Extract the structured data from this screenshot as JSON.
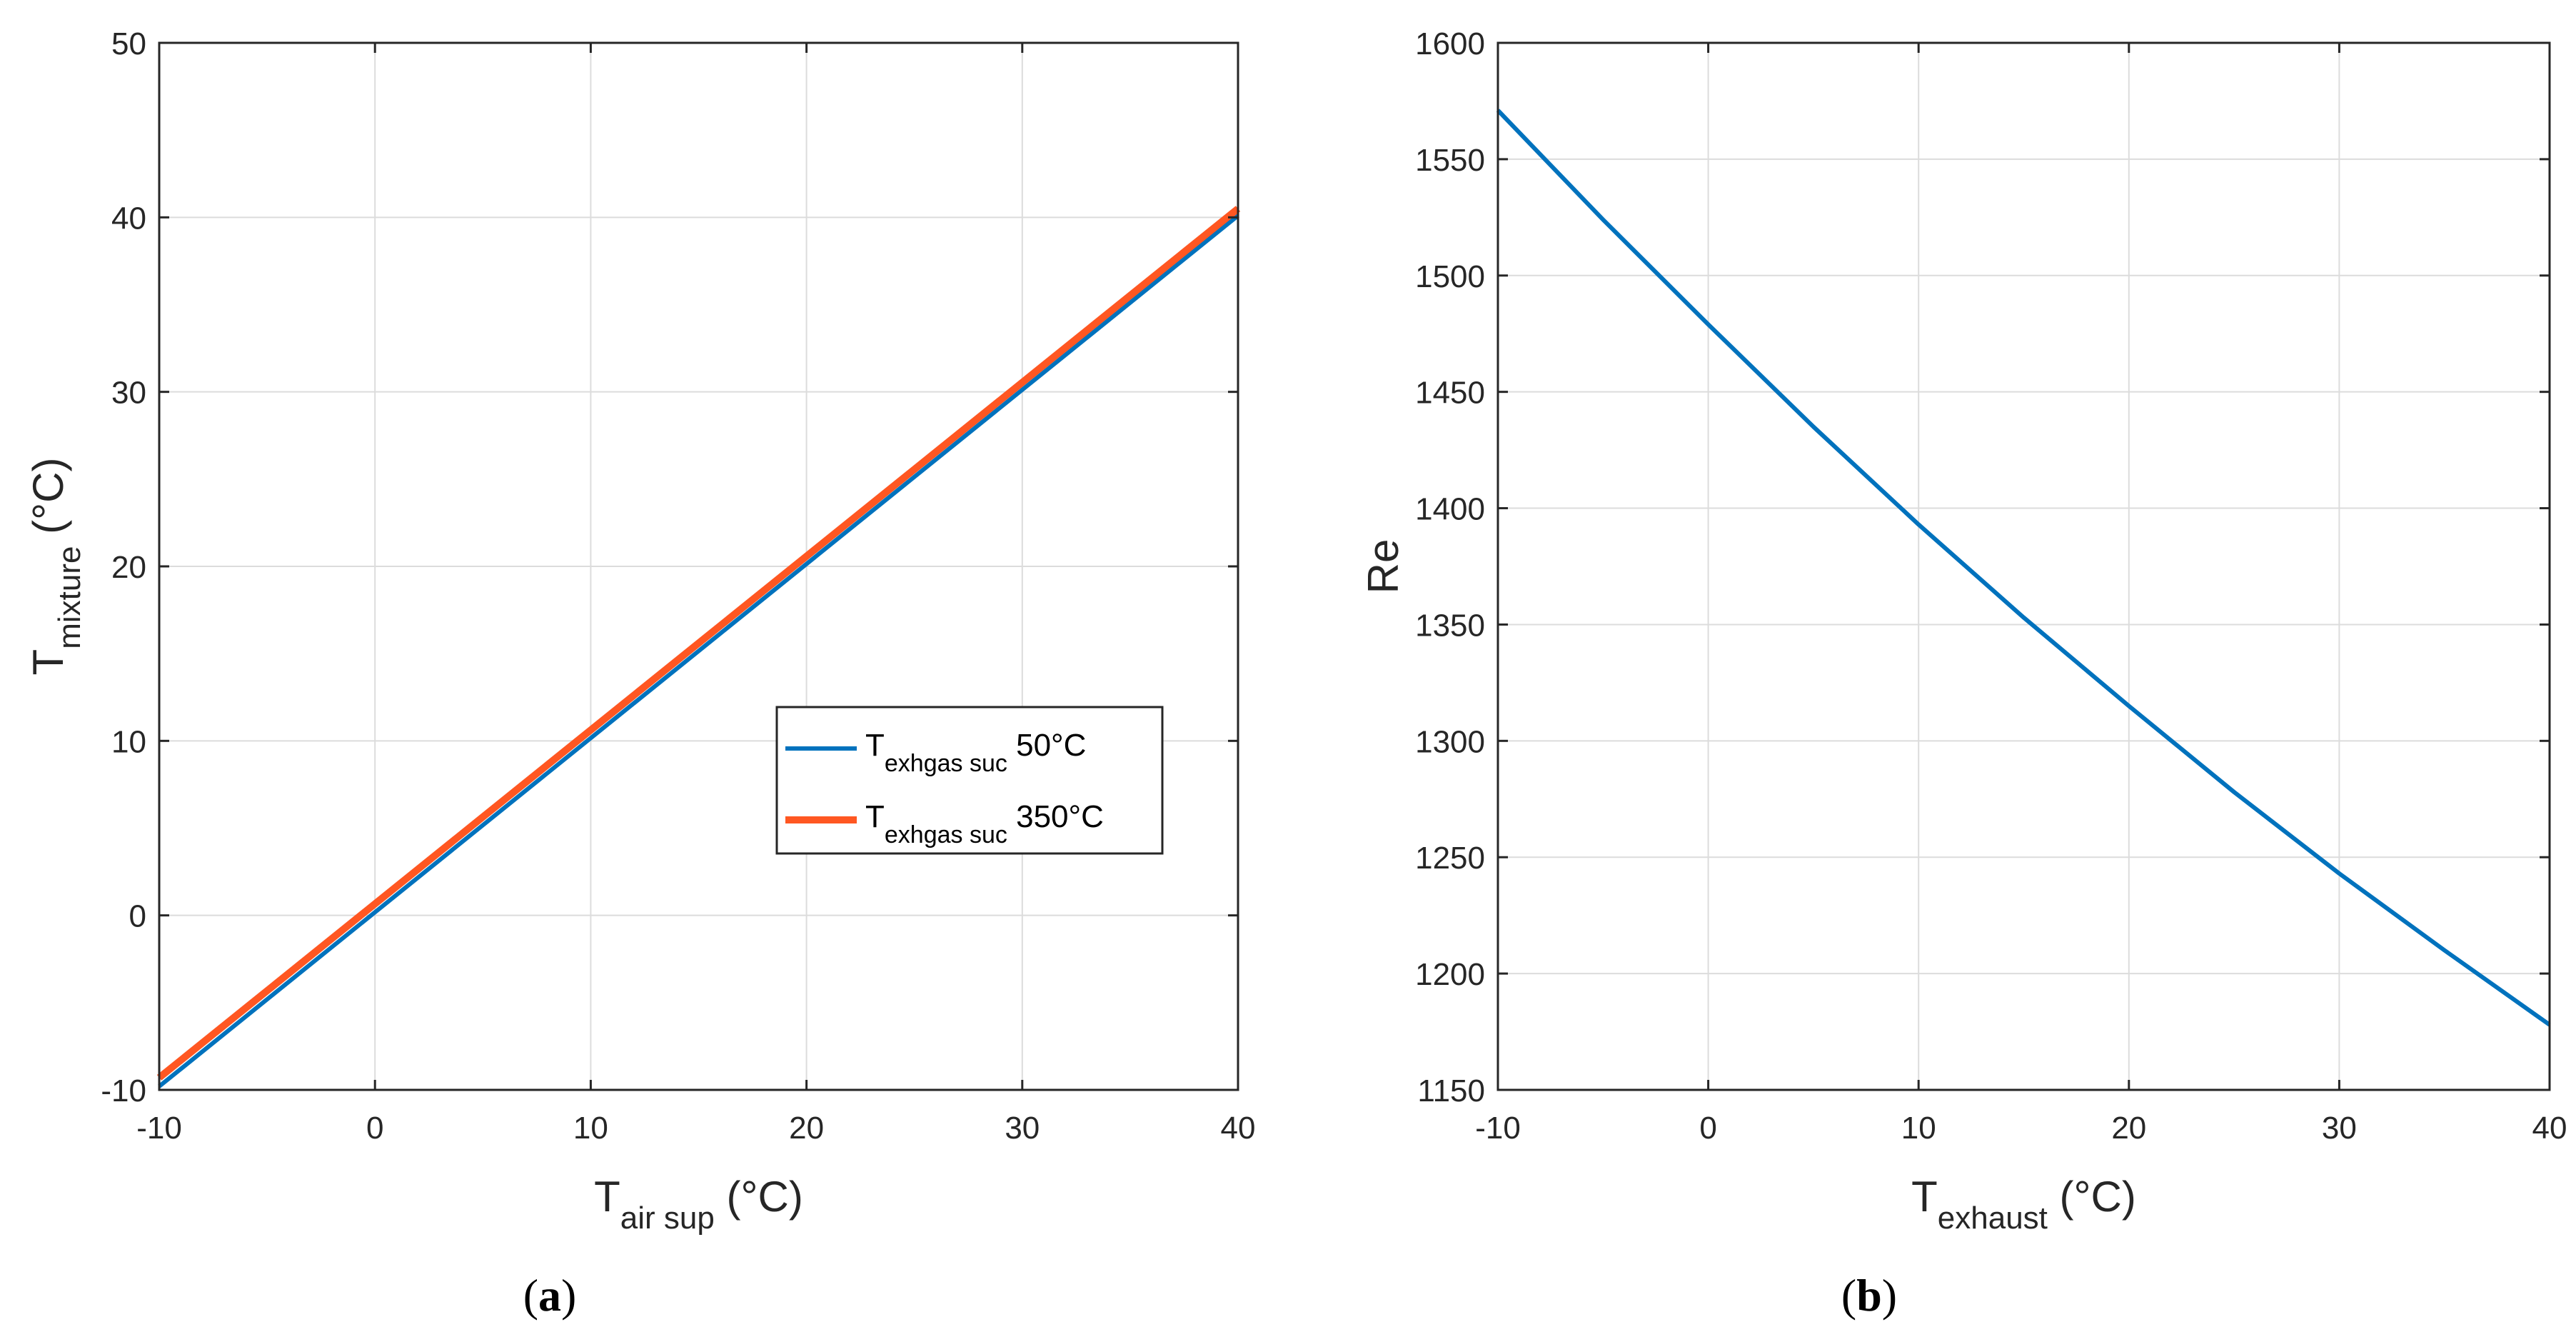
{
  "chart_data": [
    {
      "type": "line",
      "panel": "a",
      "caption": {
        "open": "(",
        "letter": "a",
        "close": ")"
      },
      "xlabel": {
        "main": "T",
        "sub": "air sup",
        "unit": " (°C)"
      },
      "ylabel": {
        "main": "T",
        "sub": "mixture",
        "unit": " (°C)"
      },
      "xlim": [
        -10,
        40
      ],
      "ylim": [
        -10,
        50
      ],
      "xticks": [
        -10,
        0,
        10,
        20,
        30,
        40
      ],
      "yticks": [
        -10,
        0,
        10,
        20,
        30,
        40,
        50
      ],
      "grid": true,
      "legend_location": "center-right",
      "series": [
        {
          "name": "T exhgas suc 50°C",
          "legend": {
            "main": "T",
            "sub": "exhgas suc",
            "value": " 50°C"
          },
          "color": "#0072BD",
          "x": [
            -10,
            40
          ],
          "y": [
            -9.8,
            40.1
          ]
        },
        {
          "name": "T exhgas suc 350°C",
          "legend": {
            "main": "T",
            "sub": "exhgas suc",
            "value": " 350°C"
          },
          "color": "#FF5722",
          "x": [
            -10,
            40
          ],
          "y": [
            -9.3,
            40.5
          ]
        }
      ]
    },
    {
      "type": "line",
      "panel": "b",
      "caption": {
        "open": "(",
        "letter": "b",
        "close": ")"
      },
      "xlabel": {
        "main": "T",
        "sub": "exhaust",
        "unit": " (°C)"
      },
      "ylabel": {
        "main": "Re",
        "sub": "",
        "unit": ""
      },
      "xlim": [
        -10,
        40
      ],
      "ylim": [
        1150,
        1600
      ],
      "xticks": [
        -10,
        0,
        10,
        20,
        30,
        40
      ],
      "yticks": [
        1150,
        1200,
        1250,
        1300,
        1350,
        1400,
        1450,
        1500,
        1550,
        1600
      ],
      "grid": true,
      "series": [
        {
          "name": "Re",
          "color": "#0072BD",
          "x": [
            -10,
            -5,
            0,
            5,
            10,
            15,
            20,
            25,
            30,
            35,
            40
          ],
          "y": [
            1571,
            1524,
            1479,
            1435,
            1393,
            1353,
            1315,
            1278,
            1243,
            1210,
            1178
          ]
        }
      ]
    }
  ]
}
